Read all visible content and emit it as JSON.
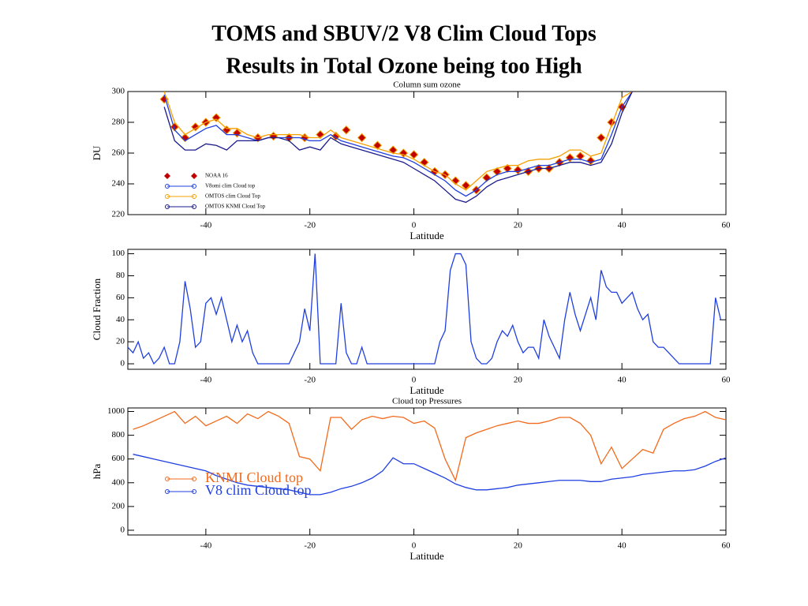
{
  "title": [
    "TOMS and SBUV/2 V8 Clim Cloud Tops",
    "Results in Total Ozone being too High"
  ],
  "chart_data": [
    {
      "type": "line",
      "title": "Column sum ozone",
      "xlabel": "Latitude",
      "ylabel": "DU",
      "legend": "lower left",
      "xlim": [
        -55,
        60
      ],
      "xticks": [
        -40,
        -20,
        0,
        20,
        40,
        60
      ],
      "ylim": [
        220,
        300
      ],
      "yticks": [
        220,
        240,
        260,
        280,
        300
      ],
      "x": [
        -48,
        -46,
        -44,
        -42,
        -40,
        -38,
        -36,
        -34,
        -32,
        -30,
        -28,
        -26,
        -24,
        -22,
        -20,
        -18,
        -16,
        -14,
        -12,
        -10,
        -8,
        -6,
        -4,
        -2,
        0,
        2,
        4,
        6,
        8,
        10,
        12,
        14,
        16,
        18,
        20,
        22,
        24,
        26,
        28,
        30,
        32,
        34,
        36,
        38,
        40,
        42
      ],
      "series": [
        {
          "name": "NOAA 16",
          "color": "#c00000",
          "marker": "diamond",
          "line": false,
          "x": [
            -48,
            -46,
            -44,
            -42,
            -40,
            -38,
            -36,
            -34,
            -30,
            -27,
            -24,
            -21,
            -18,
            -15,
            -13,
            -10,
            -7,
            -4,
            -2,
            0,
            2,
            4,
            6,
            8,
            10,
            12,
            14,
            16,
            18,
            20,
            22,
            24,
            26,
            28,
            30,
            32,
            34,
            36,
            38,
            40
          ],
          "values": [
            295,
            277,
            270,
            277,
            280,
            283,
            275,
            273,
            270,
            271,
            270,
            270,
            272,
            271,
            275,
            270,
            265,
            262,
            260,
            259,
            254,
            248,
            246,
            242,
            239,
            236,
            244,
            248,
            250,
            249,
            248,
            250,
            250,
            254,
            257,
            258,
            255,
            270,
            280,
            290
          ]
        },
        {
          "name": "V8omi clim Cloud top",
          "color": "#1f3fe0",
          "line": true,
          "values": [
            298,
            275,
            268,
            272,
            276,
            278,
            272,
            272,
            270,
            268,
            270,
            270,
            270,
            270,
            268,
            268,
            272,
            268,
            266,
            264,
            262,
            260,
            258,
            257,
            254,
            250,
            246,
            242,
            236,
            232,
            236,
            242,
            246,
            248,
            248,
            250,
            252,
            252,
            254,
            256,
            256,
            254,
            256,
            272,
            290,
            300
          ]
        },
        {
          "name": "OMTOS clim Cloud Top",
          "color": "#f5a000",
          "line": true,
          "values": [
            300,
            280,
            272,
            276,
            280,
            282,
            276,
            276,
            272,
            270,
            272,
            272,
            272,
            272,
            270,
            270,
            275,
            270,
            268,
            266,
            264,
            262,
            260,
            259,
            256,
            252,
            248,
            246,
            240,
            236,
            242,
            248,
            250,
            252,
            252,
            255,
            256,
            256,
            258,
            262,
            262,
            258,
            260,
            278,
            296,
            300
          ]
        },
        {
          "name": "OMTOS KNMI Cloud Top",
          "color": "#1a1a8c",
          "line": true,
          "values": [
            290,
            268,
            262,
            262,
            266,
            265,
            262,
            268,
            268,
            268,
            270,
            270,
            268,
            262,
            264,
            262,
            270,
            266,
            264,
            262,
            260,
            258,
            256,
            254,
            250,
            246,
            242,
            236,
            230,
            228,
            232,
            238,
            242,
            244,
            246,
            248,
            250,
            250,
            252,
            254,
            254,
            252,
            254,
            266,
            286,
            300
          ]
        }
      ]
    },
    {
      "type": "line",
      "xlabel": "Latitude",
      "ylabel": "Cloud Fraction",
      "xlim": [
        -55,
        60
      ],
      "xticks": [
        -40,
        -20,
        0,
        20,
        40,
        60
      ],
      "ylim": [
        -5,
        104
      ],
      "yticks": [
        0,
        20,
        40,
        60,
        80,
        100
      ],
      "x": [
        -55,
        -54,
        -53,
        -52,
        -51,
        -50,
        -49,
        -48,
        -47,
        -46,
        -45,
        -44,
        -43,
        -42,
        -41,
        -40,
        -39,
        -38,
        -37,
        -36,
        -35,
        -34,
        -33,
        -32,
        -31,
        -30,
        -29,
        -28,
        -27,
        -26,
        -25,
        -24,
        -23,
        -22,
        -21,
        -20,
        -19,
        -18,
        -17,
        -16,
        -15,
        -14,
        -13,
        -12,
        -11,
        -10,
        -9,
        -8,
        -7,
        -6,
        -5,
        -4,
        -3,
        -2,
        -1,
        0,
        1,
        2,
        3,
        4,
        5,
        6,
        7,
        8,
        9,
        10,
        11,
        12,
        13,
        14,
        15,
        16,
        17,
        18,
        19,
        20,
        21,
        22,
        23,
        24,
        25,
        26,
        27,
        28,
        29,
        30,
        31,
        32,
        33,
        34,
        35,
        36,
        37,
        38,
        39,
        40,
        41,
        42,
        43,
        44,
        45,
        46,
        47,
        48,
        49,
        50,
        51,
        52,
        53,
        54,
        55,
        56,
        57,
        58,
        59
      ],
      "series": [
        {
          "color": "#1f3fe0",
          "line": true,
          "values": [
            15,
            10,
            20,
            5,
            10,
            0,
            5,
            15,
            0,
            0,
            20,
            75,
            50,
            15,
            20,
            55,
            60,
            45,
            60,
            40,
            20,
            35,
            20,
            30,
            10,
            0,
            0,
            0,
            0,
            0,
            0,
            0,
            10,
            20,
            50,
            30,
            100,
            0,
            0,
            0,
            0,
            55,
            10,
            0,
            0,
            15,
            0,
            0,
            0,
            0,
            0,
            0,
            0,
            0,
            0,
            0,
            0,
            0,
            0,
            0,
            20,
            30,
            85,
            100,
            100,
            90,
            20,
            5,
            0,
            0,
            5,
            20,
            30,
            25,
            35,
            20,
            10,
            15,
            15,
            5,
            40,
            25,
            15,
            5,
            40,
            65,
            45,
            30,
            45,
            60,
            40,
            85,
            70,
            65,
            65,
            55,
            60,
            65,
            50,
            40,
            45,
            20,
            15,
            15,
            10,
            5,
            0,
            0,
            0,
            0,
            0,
            0,
            0,
            60,
            40
          ]
        }
      ]
    },
    {
      "type": "line",
      "title": "Cloud top Pressures",
      "xlabel": "Latitude",
      "ylabel": "hPa",
      "legend": "lower left",
      "legend_size": "large",
      "xlim": [
        -55,
        60
      ],
      "xticks": [
        -40,
        -20,
        0,
        20,
        40,
        60
      ],
      "ylim": [
        -40,
        1030
      ],
      "yticks": [
        0,
        200,
        400,
        600,
        800,
        1000
      ],
      "x": [
        -54,
        -52,
        -50,
        -48,
        -46,
        -44,
        -42,
        -40,
        -38,
        -36,
        -34,
        -32,
        -30,
        -28,
        -26,
        -24,
        -22,
        -20,
        -18,
        -16,
        -14,
        -12,
        -10,
        -8,
        -6,
        -4,
        -2,
        0,
        2,
        4,
        6,
        8,
        10,
        12,
        14,
        16,
        18,
        20,
        22,
        24,
        26,
        28,
        30,
        32,
        34,
        36,
        38,
        40,
        42,
        44,
        46,
        48,
        50,
        52,
        54,
        56,
        58,
        60
      ],
      "series": [
        {
          "name": "KNMI Cloud top",
          "color": "#f26a1b",
          "line": true,
          "values": [
            850,
            880,
            920,
            960,
            1000,
            900,
            960,
            880,
            920,
            960,
            900,
            980,
            940,
            1000,
            960,
            900,
            620,
            600,
            500,
            950,
            950,
            850,
            930,
            960,
            940,
            960,
            950,
            900,
            920,
            860,
            600,
            420,
            780,
            820,
            850,
            880,
            900,
            920,
            900,
            900,
            920,
            950,
            950,
            900,
            800,
            560,
            700,
            520,
            600,
            680,
            650,
            850,
            900,
            940,
            960,
            1000,
            950,
            930
          ]
        },
        {
          "name": "V8 clim Cloud top",
          "color": "#1f3fe0",
          "line": true,
          "values": [
            640,
            620,
            600,
            580,
            560,
            540,
            520,
            500,
            460,
            430,
            400,
            380,
            370,
            360,
            350,
            340,
            320,
            300,
            300,
            320,
            350,
            370,
            400,
            440,
            500,
            610,
            560,
            560,
            520,
            480,
            440,
            390,
            360,
            340,
            340,
            350,
            360,
            380,
            390,
            400,
            410,
            420,
            420,
            420,
            410,
            410,
            430,
            440,
            450,
            470,
            480,
            490,
            500,
            500,
            510,
            540,
            580,
            610
          ]
        }
      ]
    }
  ]
}
